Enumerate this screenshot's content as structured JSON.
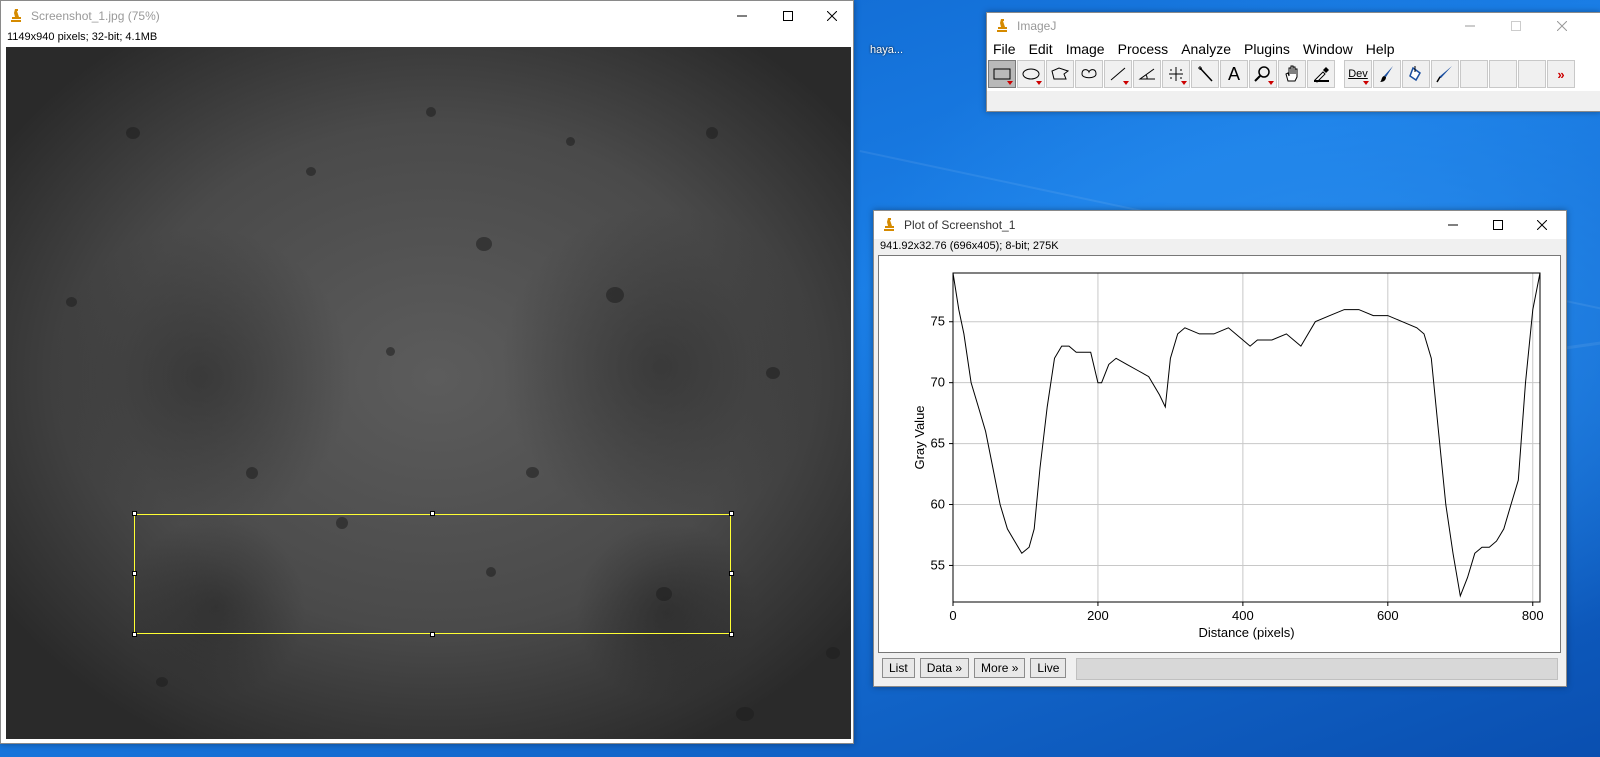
{
  "desktop": {
    "partial_label": "haya..."
  },
  "image_window": {
    "title": "Screenshot_1.jpg (75%)",
    "info": "1149x940 pixels; 32-bit; 4.1MB"
  },
  "imagej_window": {
    "title": "ImageJ",
    "menus": [
      "File",
      "Edit",
      "Image",
      "Process",
      "Analyze",
      "Plugins",
      "Window",
      "Help"
    ],
    "tools": [
      {
        "name": "rectangle-tool-icon",
        "selected": true
      },
      {
        "name": "oval-tool-icon"
      },
      {
        "name": "polygon-tool-icon"
      },
      {
        "name": "freehand-tool-icon"
      },
      {
        "name": "line-tool-icon"
      },
      {
        "name": "angle-tool-icon"
      },
      {
        "name": "point-tool-icon"
      },
      {
        "name": "wand-tool-icon"
      },
      {
        "name": "text-tool-icon"
      },
      {
        "name": "magnifier-tool-icon"
      },
      {
        "name": "hand-tool-icon"
      },
      {
        "name": "color-picker-tool-icon"
      },
      {
        "name": "developer-menu-icon",
        "label": "Dev"
      },
      {
        "name": "brush-tool-icon"
      },
      {
        "name": "flood-fill-tool-icon"
      },
      {
        "name": "pencil-tool-icon"
      }
    ]
  },
  "plot_window": {
    "title": "Plot of Screenshot_1",
    "info": "941.92x32.76  (696x405); 8-bit; 275K",
    "buttons": {
      "list": "List",
      "data": "Data »",
      "more": "More »",
      "live": "Live"
    }
  },
  "chart_data": {
    "type": "line",
    "xlabel": "Distance (pixels)",
    "ylabel": "Gray Value",
    "xlim": [
      0,
      810
    ],
    "ylim": [
      52,
      79
    ],
    "xticks": [
      0,
      200,
      400,
      600,
      800
    ],
    "yticks": [
      55,
      60,
      65,
      70,
      75
    ],
    "grid": true,
    "series": [
      {
        "x": [
          0,
          8,
          15,
          25,
          35,
          45,
          55,
          65,
          75,
          85,
          95,
          105,
          112,
          120,
          130,
          140,
          150,
          160,
          170,
          180,
          190,
          200,
          205,
          215,
          225,
          240,
          255,
          270,
          285,
          293,
          300,
          310,
          320,
          340,
          360,
          380,
          400,
          410,
          420,
          440,
          460,
          480,
          490,
          500,
          520,
          540,
          560,
          580,
          600,
          620,
          640,
          650,
          660,
          670,
          680,
          690,
          700,
          710,
          720,
          730,
          740,
          750,
          760,
          770,
          780,
          790,
          800,
          810
        ],
        "y": [
          79,
          76,
          74,
          70,
          68,
          66,
          63,
          60,
          58,
          57,
          56,
          56.5,
          58,
          63,
          68,
          72,
          73,
          73,
          72.5,
          72.5,
          72.5,
          70,
          70,
          71.5,
          72,
          71.5,
          71,
          70.5,
          69,
          68,
          72,
          74,
          74.5,
          74,
          74,
          74.5,
          73.5,
          73,
          73.5,
          73.5,
          74,
          73,
          74,
          75,
          75.5,
          76,
          76,
          75.5,
          75.5,
          75,
          74.5,
          74,
          72,
          66,
          60,
          56,
          52.5,
          54,
          56,
          56.5,
          56.5,
          57,
          58,
          60,
          62,
          70,
          76,
          79
        ]
      }
    ]
  }
}
